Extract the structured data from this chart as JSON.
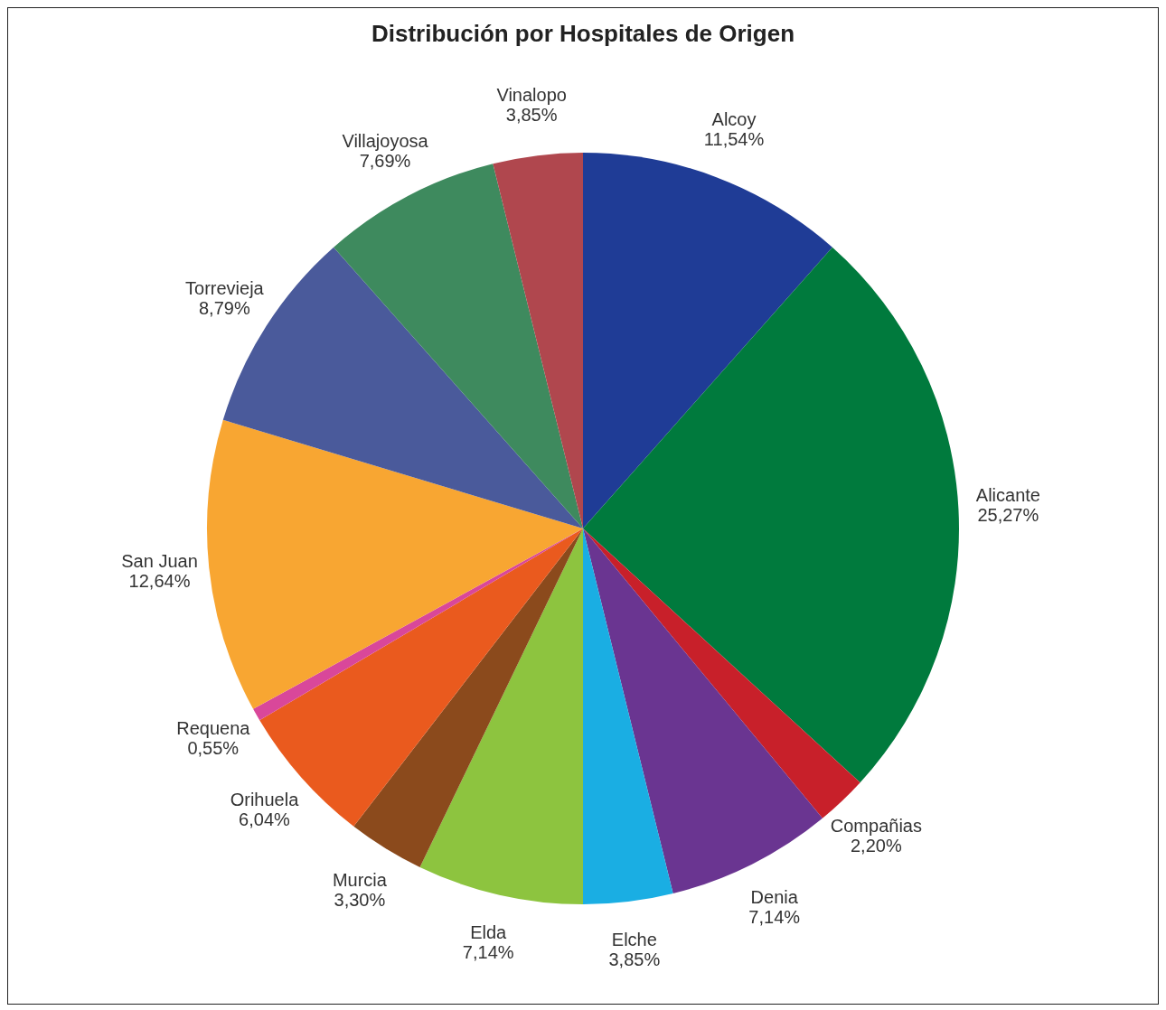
{
  "chart_data": {
    "type": "pie",
    "title": "Distribución por Hospitales de Origen",
    "categories": [
      "Alcoy",
      "Alicante",
      "Compañias",
      "Denia",
      "Elche",
      "Elda",
      "Murcia",
      "Orihuela",
      "Requena",
      "San Juan",
      "Torrevieja",
      "Villajoyosa",
      "Vinalopo"
    ],
    "values": [
      11.54,
      25.27,
      2.2,
      7.14,
      3.85,
      7.14,
      3.3,
      6.04,
      0.55,
      12.64,
      8.79,
      7.69,
      3.85
    ],
    "value_labels": [
      "11,54%",
      "25,27%",
      "2,20%",
      "7,14%",
      "3,85%",
      "7,14%",
      "3,30%",
      "6,04%",
      "0,55%",
      "12,64%",
      "8,79%",
      "7,69%",
      "3,85%"
    ],
    "colors": [
      "#1f3c96",
      "#007a3d",
      "#c8202a",
      "#6a3591",
      "#1aaee3",
      "#8dc43f",
      "#8b4a1c",
      "#ea5a1e",
      "#d9479a",
      "#f8a632",
      "#4a5a9b",
      "#3e8a5e",
      "#b0474e"
    ],
    "legend": false
  }
}
